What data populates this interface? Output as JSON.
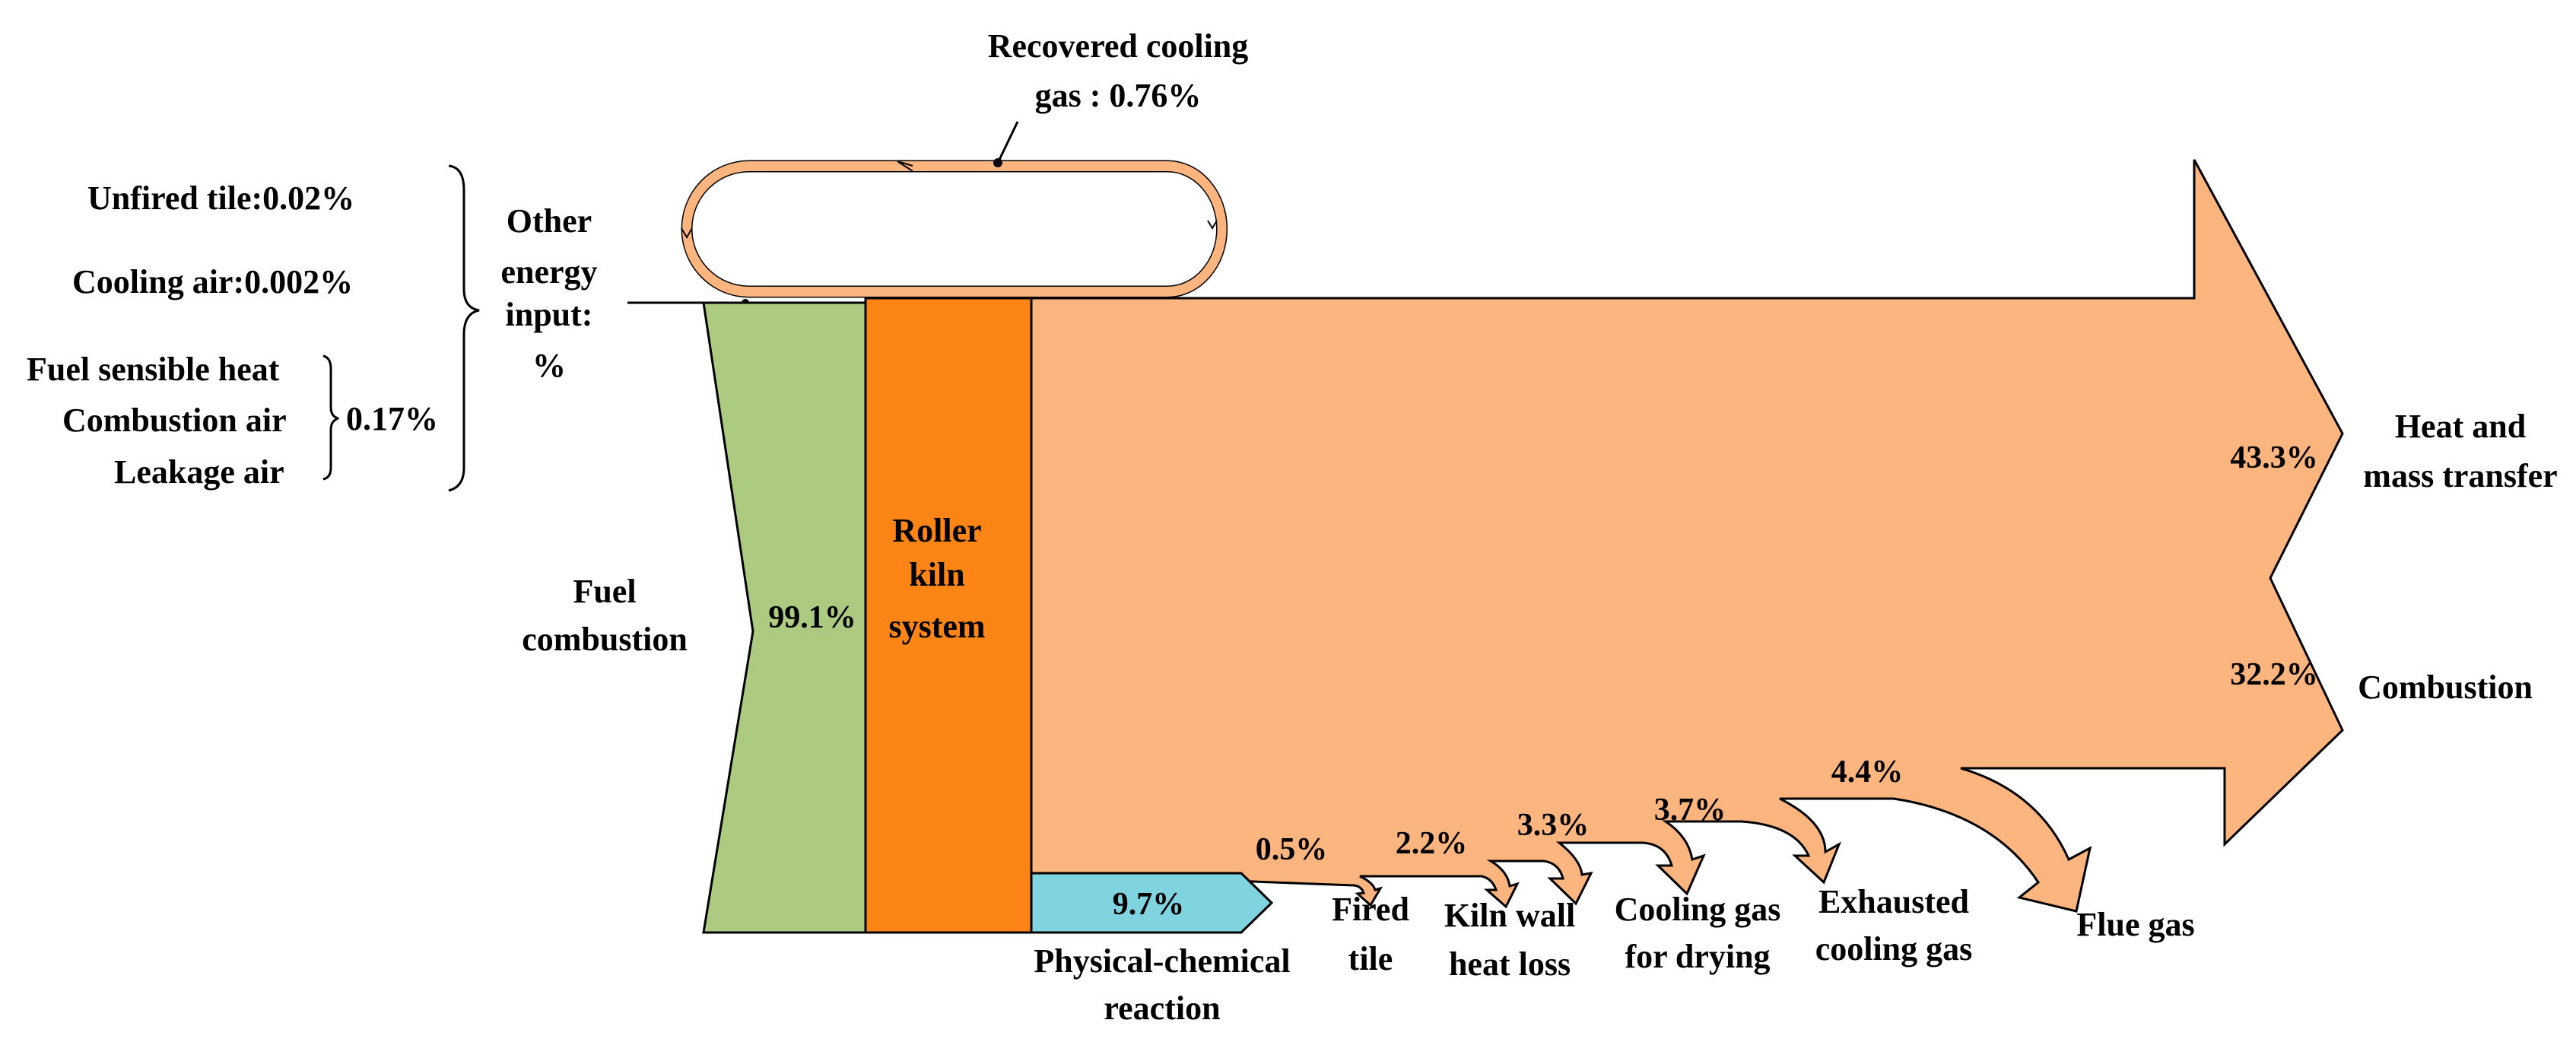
{
  "colors": {
    "fuel_green": "#acca80",
    "kiln_orange": "#fd8515",
    "flow_peach": "#fdb57f",
    "phys_cyan": "#7fd4e0",
    "outline": "#000000"
  },
  "inputs": {
    "unfired_tile": "Unfired tile:0.02%",
    "cooling_air": "Cooling air:0.002%",
    "fuel_sensible_heat": "Fuel sensible heat",
    "combustion_air": "Combustion air",
    "leakage_air": "Leakage air",
    "group_pct": "0.17%",
    "other_energy": [
      "Other",
      "energy",
      "input:",
      "%"
    ],
    "fuel_combustion": [
      "Fuel",
      "combustion"
    ],
    "fuel_pct": "99.1%"
  },
  "recovered": {
    "label_line1": "Recovered cooling",
    "label_line2": "gas :   0.76%"
  },
  "system": {
    "label": [
      "Roller",
      "kiln",
      "system"
    ]
  },
  "outputs": {
    "heat_mass": {
      "pct": "43.3%",
      "label": [
        "Heat and",
        "mass transfer"
      ]
    },
    "combustion": {
      "pct": "32.2%",
      "label": "Combustion"
    },
    "physical_chemical": {
      "pct": "9.7%",
      "label": [
        "Physical-chemical",
        "reaction"
      ]
    },
    "fired_tile": {
      "pct": "0.5%",
      "label": [
        "Fired",
        "tile"
      ]
    },
    "kiln_wall": {
      "pct": "2.2%",
      "label": [
        "Kiln wall",
        "heat loss"
      ]
    },
    "cooling_drying": {
      "pct": "3.3%",
      "label": [
        "Cooling gas",
        "for drying"
      ]
    },
    "exhausted_cooling": {
      "pct": "3.7%",
      "label": [
        "Exhausted",
        "cooling gas"
      ]
    },
    "flue_gas": {
      "pct": "4.4%",
      "label": "Flue gas"
    }
  }
}
